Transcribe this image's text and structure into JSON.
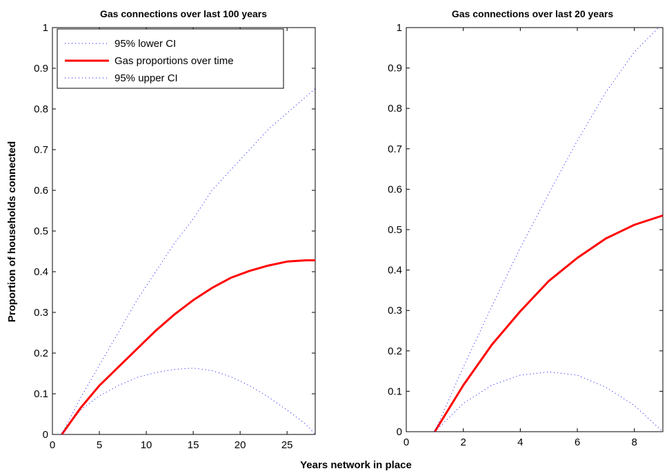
{
  "ylabel": "Proportion of households connected",
  "xlabel": "Years network in place",
  "legend": {
    "placement": "top-left of left panel",
    "entries": [
      "95% lower CI",
      "Gas proportions over time",
      "95% upper CI"
    ]
  },
  "colors": {
    "proportion": "#ff0000",
    "ci": "#0000ff",
    "axes": "#000000"
  },
  "chart_data": [
    {
      "type": "line",
      "title": "Gas connections over last 100 years",
      "xlim": [
        0,
        28
      ],
      "ylim": [
        0,
        1
      ],
      "xticks": [
        0,
        5,
        10,
        15,
        20,
        25
      ],
      "yticks": [
        0,
        0.1,
        0.2,
        0.3,
        0.4,
        0.5,
        0.6,
        0.7,
        0.8,
        0.9,
        1
      ],
      "ytick_labels": [
        "0",
        "0.1",
        "0.2",
        "0.3",
        "0.4",
        "0.5",
        "0.6",
        "0.7",
        "0.8",
        "0.9",
        "1"
      ],
      "grid": false,
      "series": [
        {
          "name": "95% lower CI",
          "style": "dotted",
          "color": "#0000ff",
          "x": [
            1,
            3,
            5,
            7,
            9,
            11,
            13,
            15,
            17,
            19,
            21,
            23,
            25,
            27,
            28
          ],
          "y": [
            0,
            0.06,
            0.095,
            0.12,
            0.14,
            0.152,
            0.16,
            0.163,
            0.157,
            0.142,
            0.12,
            0.092,
            0.06,
            0.025,
            0
          ]
        },
        {
          "name": "Gas proportions over time",
          "style": "solid",
          "color": "#ff0000",
          "x": [
            1,
            3,
            5,
            7,
            9,
            11,
            13,
            15,
            17,
            19,
            21,
            23,
            25,
            27,
            28
          ],
          "y": [
            0,
            0.065,
            0.12,
            0.165,
            0.21,
            0.255,
            0.295,
            0.33,
            0.36,
            0.385,
            0.402,
            0.415,
            0.425,
            0.428,
            0.428
          ]
        },
        {
          "name": "95% upper CI",
          "style": "dotted",
          "color": "#0000ff",
          "x": [
            1,
            3,
            5,
            7,
            9,
            11,
            13,
            15,
            17,
            19,
            21,
            23,
            25,
            27,
            28
          ],
          "y": [
            0,
            0.09,
            0.17,
            0.25,
            0.33,
            0.4,
            0.47,
            0.53,
            0.6,
            0.65,
            0.7,
            0.75,
            0.79,
            0.83,
            0.85
          ]
        }
      ]
    },
    {
      "type": "line",
      "title": "Gas connections over last 20 years",
      "xlim": [
        0,
        9
      ],
      "ylim": [
        0,
        1
      ],
      "xticks": [
        0,
        2,
        4,
        6,
        8
      ],
      "yticks": [
        0,
        0.1,
        0.2,
        0.3,
        0.4,
        0.5,
        0.6,
        0.7,
        0.8,
        0.9,
        1
      ],
      "ytick_labels": [
        "0",
        "0.1",
        "0.2",
        "0.3",
        "0.4",
        "0.5",
        "0.6",
        "0.7",
        "0.8",
        "0.9",
        "1"
      ],
      "grid": false,
      "series": [
        {
          "name": "95% lower CI",
          "style": "dotted",
          "color": "#0000ff",
          "x": [
            1,
            2,
            3,
            4,
            5,
            6,
            7,
            8,
            9
          ],
          "y": [
            0,
            0.07,
            0.115,
            0.14,
            0.148,
            0.14,
            0.11,
            0.065,
            0
          ]
        },
        {
          "name": "Gas proportions over time",
          "style": "solid",
          "color": "#ff0000",
          "x": [
            1,
            2,
            3,
            4,
            5,
            6,
            7,
            8,
            9
          ],
          "y": [
            0,
            0.115,
            0.215,
            0.298,
            0.373,
            0.43,
            0.478,
            0.512,
            0.535
          ]
        },
        {
          "name": "95% upper CI",
          "style": "dotted",
          "color": "#0000ff",
          "x": [
            1,
            2,
            3,
            4,
            5,
            6,
            7,
            8,
            8.85
          ],
          "y": [
            0,
            0.16,
            0.31,
            0.455,
            0.59,
            0.72,
            0.84,
            0.94,
            1.0
          ]
        }
      ]
    }
  ]
}
